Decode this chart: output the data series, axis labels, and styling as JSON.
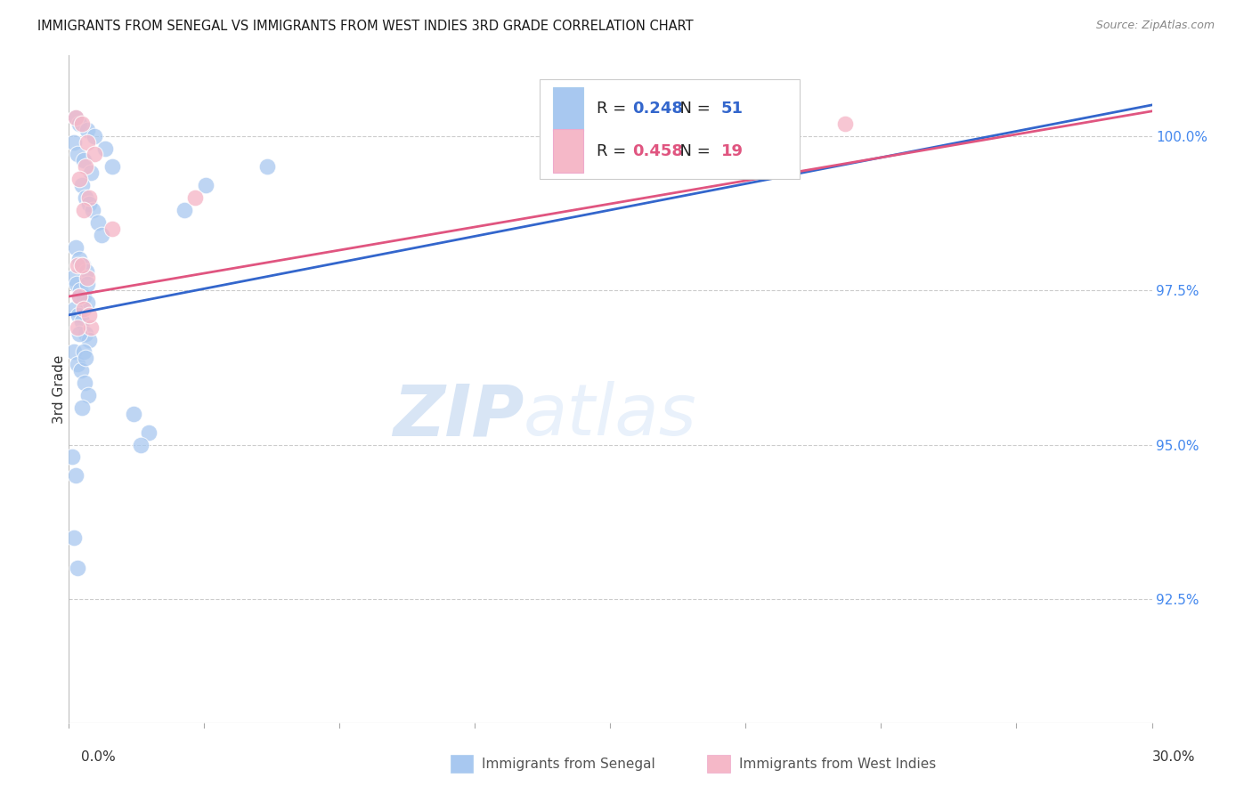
{
  "title": "IMMIGRANTS FROM SENEGAL VS IMMIGRANTS FROM WEST INDIES 3RD GRADE CORRELATION CHART",
  "source": "Source: ZipAtlas.com",
  "ylabel": "3rd Grade",
  "ytick_values": [
    92.5,
    95.0,
    97.5,
    100.0
  ],
  "xmin": 0.0,
  "xmax": 30.0,
  "ymin": 90.5,
  "ymax": 101.3,
  "blue_label": "Immigrants from Senegal",
  "pink_label": "Immigrants from West Indies",
  "R_blue": "0.248",
  "N_blue": "51",
  "R_pink": "0.458",
  "N_pink": "19",
  "blue_color": "#a8c8f0",
  "pink_color": "#f5b8c8",
  "blue_line_color": "#3366cc",
  "pink_line_color": "#e05580",
  "watermark_zip": "ZIP",
  "watermark_atlas": "atlas",
  "blue_scatter_x": [
    0.2,
    0.3,
    0.5,
    0.7,
    1.0,
    1.2,
    0.15,
    0.25,
    0.4,
    0.6,
    0.35,
    0.45,
    0.55,
    0.65,
    0.8,
    0.9,
    0.18,
    0.28,
    0.38,
    0.48,
    0.12,
    0.22,
    0.32,
    0.42,
    0.52,
    0.16,
    0.26,
    0.36,
    0.46,
    0.56,
    0.14,
    0.24,
    0.34,
    0.44,
    0.54,
    5.5,
    3.2,
    3.8,
    0.3,
    0.5,
    1.8,
    2.2,
    2.0,
    0.1,
    0.2,
    0.3,
    0.4,
    0.15,
    0.25,
    0.35,
    0.45
  ],
  "blue_scatter_y": [
    100.3,
    100.2,
    100.1,
    100.0,
    99.8,
    99.5,
    99.9,
    99.7,
    99.6,
    99.4,
    99.2,
    99.0,
    98.9,
    98.8,
    98.6,
    98.4,
    98.2,
    98.0,
    97.9,
    97.8,
    97.7,
    97.6,
    97.5,
    97.4,
    97.3,
    97.2,
    97.1,
    97.0,
    96.8,
    96.7,
    96.5,
    96.3,
    96.2,
    96.0,
    95.8,
    99.5,
    98.8,
    99.2,
    97.4,
    97.6,
    95.5,
    95.2,
    95.0,
    94.8,
    94.5,
    96.8,
    96.5,
    93.5,
    93.0,
    95.6,
    96.4
  ],
  "pink_scatter_x": [
    0.2,
    0.35,
    0.5,
    0.7,
    0.45,
    0.3,
    0.55,
    0.4,
    1.2,
    0.25,
    0.5,
    0.3,
    0.4,
    0.6,
    0.25,
    21.5,
    3.5,
    0.35,
    0.55
  ],
  "pink_scatter_y": [
    100.3,
    100.2,
    99.9,
    99.7,
    99.5,
    99.3,
    99.0,
    98.8,
    98.5,
    97.9,
    97.7,
    97.4,
    97.2,
    96.9,
    96.9,
    100.2,
    99.0,
    97.9,
    97.1
  ],
  "blue_trendline_x0": 0.0,
  "blue_trendline_x1": 30.0,
  "blue_trendline_y0": 97.1,
  "blue_trendline_y1": 100.5,
  "pink_trendline_x0": 0.0,
  "pink_trendline_x1": 30.0,
  "pink_trendline_y0": 97.4,
  "pink_trendline_y1": 100.4
}
